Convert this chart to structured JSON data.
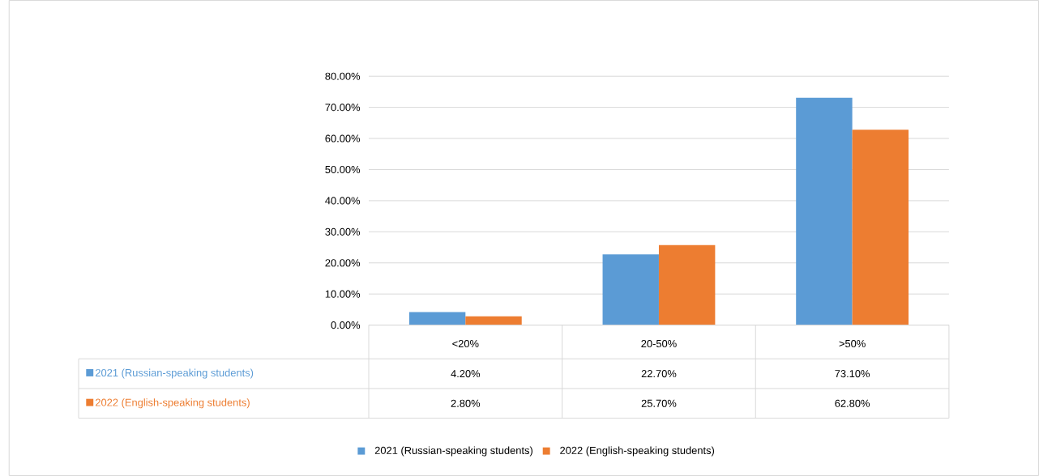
{
  "chart_data": {
    "type": "bar",
    "categories": [
      "<20%",
      "20-50%",
      ">50%"
    ],
    "series": [
      {
        "name": "2021 (Russian-speaking students)",
        "color": "#5b9bd5",
        "values": [
          4.2,
          22.7,
          73.1
        ],
        "value_labels": [
          "4.20%",
          "22.70%",
          "73.10%"
        ]
      },
      {
        "name": "2022 (English-speaking students)",
        "color": "#ed7d31",
        "values": [
          2.8,
          25.7,
          62.8
        ],
        "value_labels": [
          "2.80%",
          "25.70%",
          "62.80%"
        ]
      }
    ],
    "ylim": [
      0,
      80
    ],
    "yticks": [
      {
        "value": 0,
        "label": "0.00%"
      },
      {
        "value": 10,
        "label": "10.00%"
      },
      {
        "value": 20,
        "label": "20.00%"
      },
      {
        "value": 30,
        "label": "30.00%"
      },
      {
        "value": 40,
        "label": "40.00%"
      },
      {
        "value": 50,
        "label": "50.00%"
      },
      {
        "value": 60,
        "label": "60.00%"
      },
      {
        "value": 70,
        "label": "70.00%"
      },
      {
        "value": 80,
        "label": "80.00%"
      }
    ],
    "grid": "y",
    "legend": "bottom"
  }
}
